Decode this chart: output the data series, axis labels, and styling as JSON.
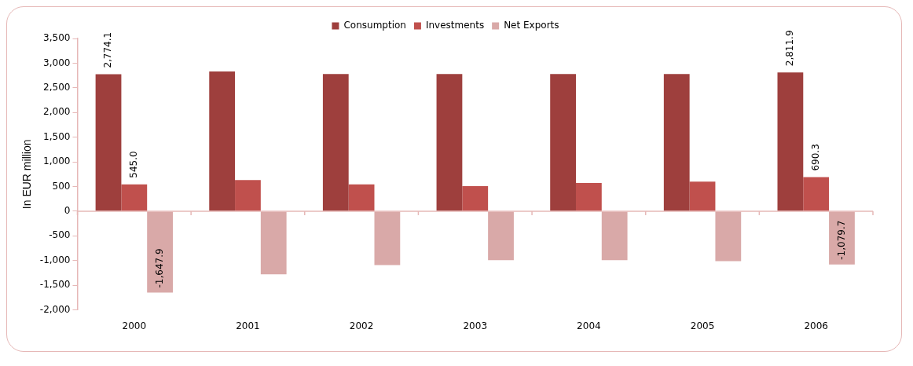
{
  "chart_data": {
    "type": "bar",
    "categories": [
      "2000",
      "2001",
      "2002",
      "2003",
      "2004",
      "2005",
      "2006"
    ],
    "series": [
      {
        "name": "Consumption",
        "color": "#9e3f3d",
        "values": [
          2774.1,
          2830,
          2780,
          2780,
          2780,
          2780,
          2811.9
        ],
        "value_labels": [
          "2,774.1",
          null,
          null,
          null,
          null,
          null,
          "2,811.9"
        ]
      },
      {
        "name": "Investments",
        "color": "#c0504d",
        "values": [
          545.0,
          630,
          545,
          510,
          570,
          600,
          690.3
        ],
        "value_labels": [
          "545.0",
          null,
          null,
          null,
          null,
          null,
          "690.3"
        ]
      },
      {
        "name": "Net Exports",
        "color": "#d9a9a8",
        "values": [
          -1647.9,
          -1280,
          -1090,
          -990,
          -990,
          -1010,
          -1079.7
        ],
        "value_labels": [
          "-1,647.9",
          null,
          null,
          null,
          null,
          null,
          "-1,079.7"
        ]
      }
    ],
    "ylabel": "In EUR million",
    "ylim": [
      -2000,
      3500
    ],
    "yticks": [
      {
        "value": -2000,
        "label": "-2,000"
      },
      {
        "value": -1500,
        "label": "-1,500"
      },
      {
        "value": -1000,
        "label": "-1,000"
      },
      -500,
      0,
      500,
      {
        "value": 1000,
        "label": "1,000"
      },
      {
        "value": 1500,
        "label": "1,500"
      },
      {
        "value": 2000,
        "label": "2,000"
      },
      {
        "value": 2500,
        "label": "2,500"
      },
      {
        "value": 3000,
        "label": "3,000"
      },
      {
        "value": 3500,
        "label": "3,500"
      }
    ],
    "ref_lines": [
      {
        "axis": "y",
        "value": 0,
        "color": "#e6b8b7"
      }
    ],
    "legend": "top",
    "grid": false
  }
}
